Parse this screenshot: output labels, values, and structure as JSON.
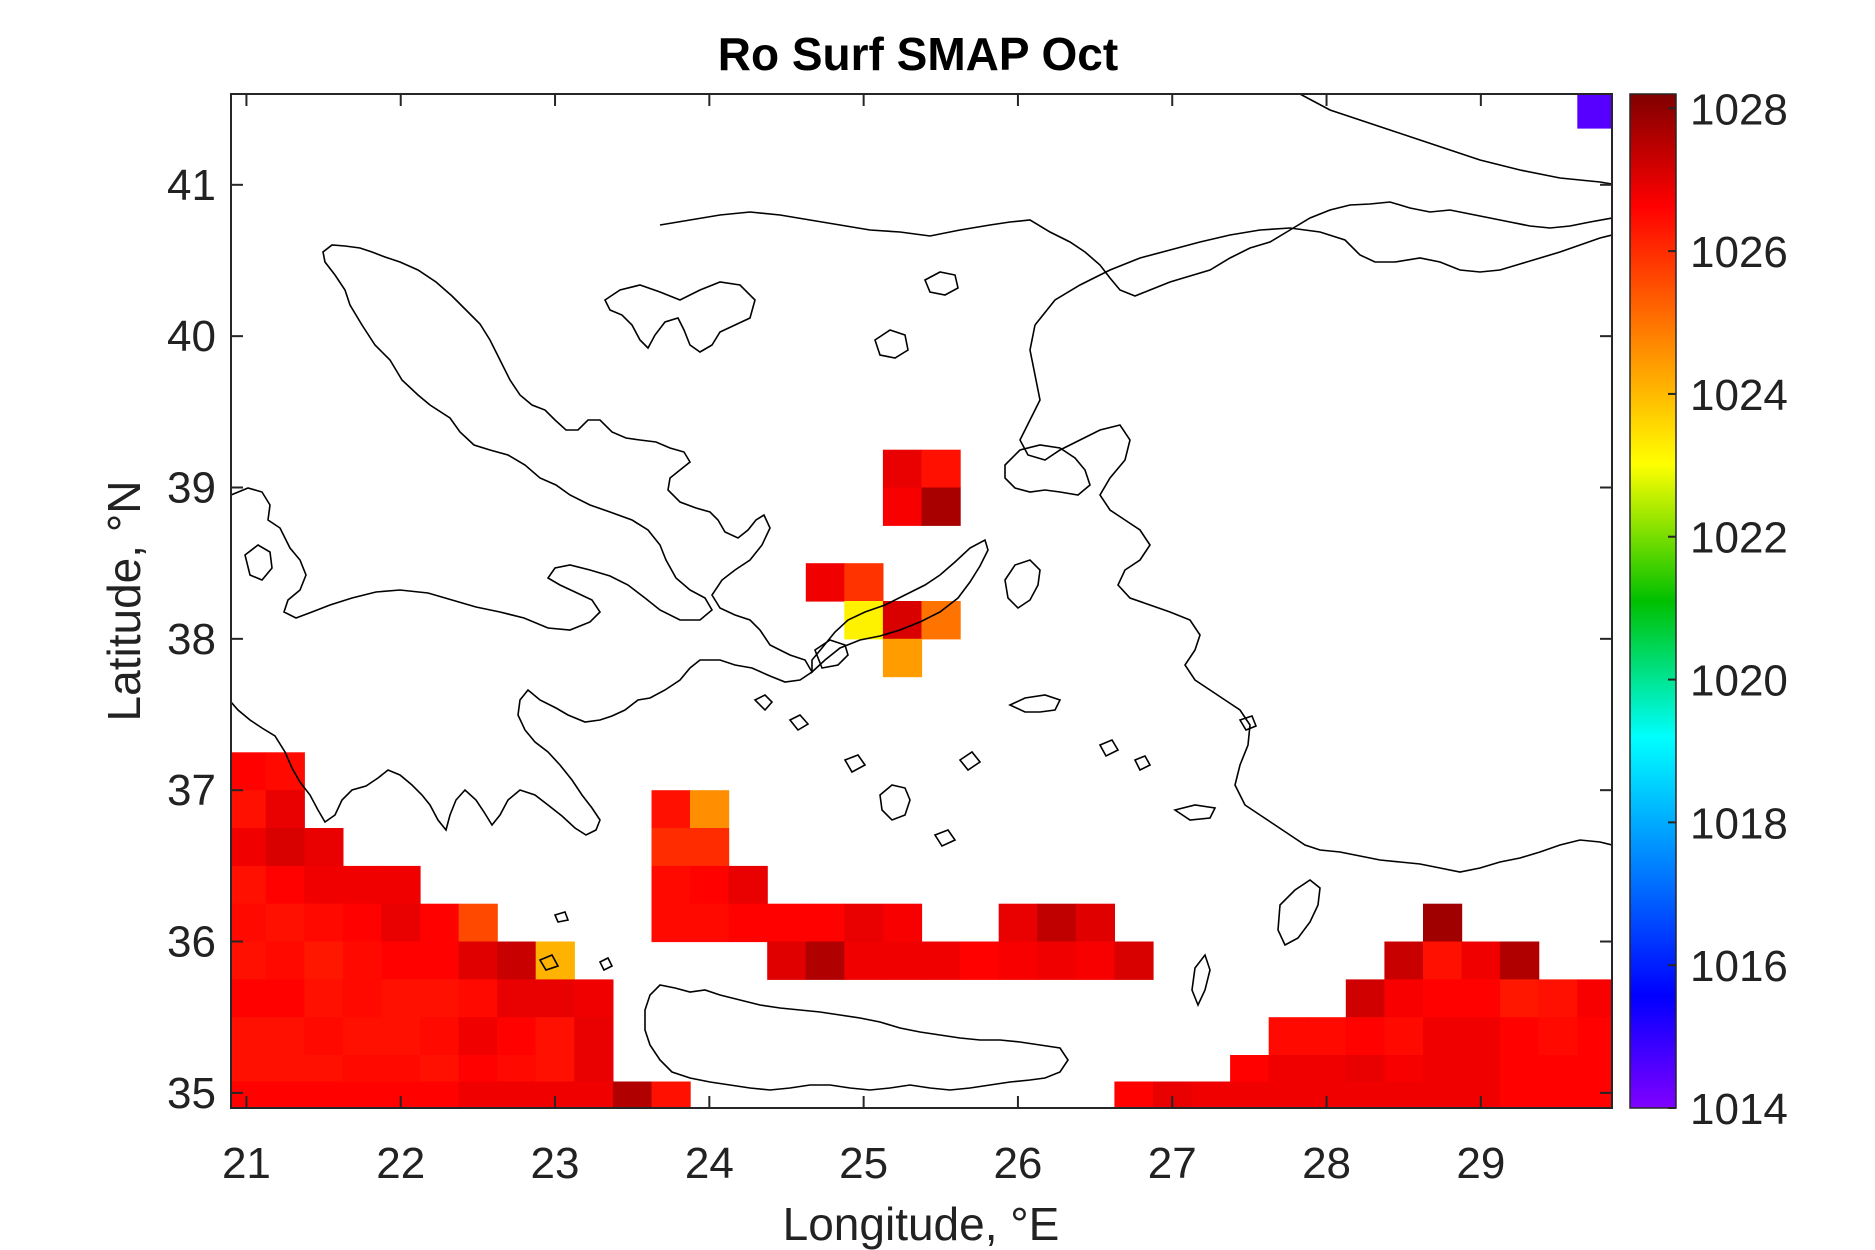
{
  "chart_data": {
    "type": "heatmap",
    "title": "Ro Surf SMAP Oct",
    "xlabel": "Longitude, °E",
    "ylabel": "Latitude, °N",
    "xlim": [
      20.9,
      29.85
    ],
    "ylim": [
      34.9,
      41.6
    ],
    "xticks": [
      21,
      22,
      23,
      24,
      25,
      26,
      27,
      28,
      29
    ],
    "yticks": [
      35,
      36,
      37,
      38,
      39,
      40,
      41
    ],
    "xtick_labels": [
      "21",
      "22",
      "23",
      "24",
      "25",
      "26",
      "27",
      "28",
      "29"
    ],
    "ytick_labels": [
      "35",
      "36",
      "37",
      "38",
      "39",
      "40",
      "41"
    ],
    "colorbar": {
      "colormap": "jet",
      "range": [
        1014,
        1028.2
      ],
      "ticks": [
        1014,
        1016,
        1018,
        1020,
        1022,
        1024,
        1026,
        1028
      ],
      "tick_labels": [
        "1014",
        "1016",
        "1018",
        "1020",
        "1022",
        "1024",
        "1026",
        "1028"
      ]
    },
    "grid_step": 0.25,
    "cells": [
      [
        21.0,
        37.125,
        1026.6
      ],
      [
        21.0,
        36.875,
        1026.4
      ],
      [
        21.0,
        36.625,
        1026.8
      ],
      [
        21.0,
        36.375,
        1026.4
      ],
      [
        21.0,
        36.125,
        1026.5
      ],
      [
        21.0,
        35.875,
        1026.4
      ],
      [
        21.0,
        35.625,
        1026.6
      ],
      [
        21.0,
        35.375,
        1026.4
      ],
      [
        21.0,
        35.125,
        1026.4
      ],
      [
        21.0,
        34.95,
        1026.6
      ],
      [
        21.25,
        37.125,
        1026.5
      ],
      [
        21.25,
        36.875,
        1026.9
      ],
      [
        21.25,
        36.625,
        1027.1
      ],
      [
        21.25,
        36.375,
        1026.6
      ],
      [
        21.25,
        36.125,
        1026.4
      ],
      [
        21.25,
        35.875,
        1026.5
      ],
      [
        21.25,
        35.625,
        1026.6
      ],
      [
        21.25,
        35.375,
        1026.4
      ],
      [
        21.25,
        35.125,
        1026.4
      ],
      [
        21.25,
        34.95,
        1026.6
      ],
      [
        21.5,
        36.625,
        1026.9
      ],
      [
        21.5,
        36.375,
        1026.8
      ],
      [
        21.5,
        36.125,
        1026.5
      ],
      [
        21.5,
        35.875,
        1026.3
      ],
      [
        21.5,
        35.625,
        1026.4
      ],
      [
        21.5,
        35.375,
        1026.5
      ],
      [
        21.5,
        35.125,
        1026.4
      ],
      [
        21.5,
        34.95,
        1026.6
      ],
      [
        21.75,
        36.375,
        1026.8
      ],
      [
        21.75,
        36.125,
        1026.6
      ],
      [
        21.75,
        35.875,
        1026.5
      ],
      [
        21.75,
        35.625,
        1026.5
      ],
      [
        21.75,
        35.375,
        1026.4
      ],
      [
        21.75,
        35.125,
        1026.5
      ],
      [
        21.75,
        34.95,
        1026.6
      ],
      [
        22.0,
        36.375,
        1026.8
      ],
      [
        22.0,
        36.125,
        1026.9
      ],
      [
        22.0,
        35.875,
        1026.6
      ],
      [
        22.0,
        35.625,
        1026.4
      ],
      [
        22.0,
        35.375,
        1026.4
      ],
      [
        22.0,
        35.125,
        1026.5
      ],
      [
        22.0,
        34.95,
        1026.6
      ],
      [
        22.25,
        36.125,
        1026.6
      ],
      [
        22.25,
        35.875,
        1026.6
      ],
      [
        22.25,
        35.625,
        1026.4
      ],
      [
        22.25,
        35.375,
        1026.5
      ],
      [
        22.25,
        35.125,
        1026.4
      ],
      [
        22.25,
        34.95,
        1026.6
      ],
      [
        22.5,
        36.125,
        1025.6
      ],
      [
        22.5,
        35.875,
        1027.0
      ],
      [
        22.5,
        35.625,
        1026.5
      ],
      [
        22.5,
        35.375,
        1026.8
      ],
      [
        22.5,
        35.125,
        1026.6
      ],
      [
        22.5,
        34.95,
        1026.8
      ],
      [
        22.75,
        35.875,
        1027.3
      ],
      [
        22.75,
        35.625,
        1026.9
      ],
      [
        22.75,
        35.375,
        1026.6
      ],
      [
        22.75,
        35.125,
        1026.5
      ],
      [
        22.75,
        34.95,
        1026.8
      ],
      [
        23.0,
        35.875,
        1024.1
      ],
      [
        23.0,
        35.625,
        1026.9
      ],
      [
        23.0,
        35.375,
        1026.4
      ],
      [
        23.0,
        35.125,
        1026.4
      ],
      [
        23.0,
        34.95,
        1026.8
      ],
      [
        23.25,
        35.625,
        1026.8
      ],
      [
        23.25,
        35.375,
        1026.9
      ],
      [
        23.25,
        35.125,
        1026.9
      ],
      [
        23.25,
        34.95,
        1026.8
      ],
      [
        23.5,
        34.95,
        1027.6
      ],
      [
        23.75,
        36.875,
        1026.4
      ],
      [
        23.75,
        36.625,
        1026.0
      ],
      [
        23.75,
        36.375,
        1026.5
      ],
      [
        23.75,
        36.125,
        1026.5
      ],
      [
        23.75,
        34.95,
        1026.4
      ],
      [
        24.0,
        36.875,
        1024.6
      ],
      [
        24.0,
        36.625,
        1026.0
      ],
      [
        24.0,
        36.375,
        1026.6
      ],
      [
        24.0,
        36.125,
        1026.5
      ],
      [
        24.25,
        36.375,
        1026.9
      ],
      [
        24.25,
        36.125,
        1026.6
      ],
      [
        24.5,
        36.125,
        1026.6
      ],
      [
        24.5,
        35.875,
        1027.0
      ],
      [
        24.75,
        36.125,
        1026.6
      ],
      [
        24.75,
        35.875,
        1027.6
      ],
      [
        25.0,
        36.125,
        1026.9
      ],
      [
        25.0,
        35.875,
        1026.8
      ],
      [
        25.25,
        39.125,
        1026.9
      ],
      [
        25.25,
        38.875,
        1026.7
      ],
      [
        25.25,
        36.125,
        1026.7
      ],
      [
        25.25,
        35.875,
        1026.8
      ],
      [
        25.5,
        39.125,
        1026.4
      ],
      [
        25.5,
        38.875,
        1027.7
      ],
      [
        25.5,
        35.875,
        1026.8
      ],
      [
        24.75,
        38.375,
        1026.8
      ],
      [
        25.0,
        38.375,
        1025.9
      ],
      [
        25.0,
        38.125,
        1023.2
      ],
      [
        25.25,
        38.125,
        1027.1
      ],
      [
        25.5,
        38.125,
        1025.0
      ],
      [
        25.25,
        37.875,
        1024.4
      ],
      [
        25.75,
        35.875,
        1026.6
      ],
      [
        26.0,
        36.125,
        1026.9
      ],
      [
        26.0,
        35.875,
        1026.7
      ],
      [
        26.25,
        36.125,
        1027.4
      ],
      [
        26.25,
        35.875,
        1026.8
      ],
      [
        26.5,
        36.125,
        1027.0
      ],
      [
        26.5,
        35.875,
        1026.7
      ],
      [
        26.75,
        35.875,
        1027.1
      ],
      [
        26.75,
        34.95,
        1026.6
      ],
      [
        27.0,
        34.95,
        1026.9
      ],
      [
        27.25,
        34.95,
        1026.8
      ],
      [
        27.5,
        35.125,
        1026.6
      ],
      [
        27.5,
        34.95,
        1026.8
      ],
      [
        27.75,
        35.375,
        1026.5
      ],
      [
        27.75,
        35.125,
        1026.8
      ],
      [
        27.75,
        34.95,
        1026.8
      ],
      [
        28.0,
        35.375,
        1026.5
      ],
      [
        28.0,
        35.125,
        1026.8
      ],
      [
        28.0,
        34.95,
        1026.8
      ],
      [
        28.25,
        35.625,
        1027.2
      ],
      [
        28.25,
        35.375,
        1026.6
      ],
      [
        28.25,
        35.125,
        1026.9
      ],
      [
        28.25,
        34.95,
        1026.8
      ],
      [
        28.5,
        35.875,
        1027.3
      ],
      [
        28.5,
        35.625,
        1026.7
      ],
      [
        28.5,
        35.375,
        1026.5
      ],
      [
        28.5,
        35.125,
        1026.7
      ],
      [
        28.5,
        34.95,
        1026.8
      ],
      [
        28.75,
        36.125,
        1027.8
      ],
      [
        28.75,
        35.875,
        1026.4
      ],
      [
        28.75,
        35.625,
        1026.6
      ],
      [
        28.75,
        35.375,
        1026.8
      ],
      [
        28.75,
        35.125,
        1026.8
      ],
      [
        28.75,
        34.95,
        1026.8
      ],
      [
        29.0,
        35.875,
        1026.8
      ],
      [
        29.0,
        35.625,
        1026.6
      ],
      [
        29.0,
        35.375,
        1026.8
      ],
      [
        29.0,
        35.125,
        1026.8
      ],
      [
        29.0,
        34.95,
        1026.8
      ],
      [
        29.25,
        35.875,
        1027.6
      ],
      [
        29.25,
        35.625,
        1026.3
      ],
      [
        29.25,
        35.375,
        1026.6
      ],
      [
        29.25,
        35.125,
        1026.6
      ],
      [
        29.25,
        34.95,
        1026.6
      ],
      [
        29.5,
        35.625,
        1026.4
      ],
      [
        29.5,
        35.375,
        1026.5
      ],
      [
        29.5,
        35.125,
        1026.6
      ],
      [
        29.5,
        34.95,
        1026.6
      ],
      [
        29.75,
        35.625,
        1026.7
      ],
      [
        29.75,
        35.375,
        1026.6
      ],
      [
        29.75,
        35.125,
        1026.6
      ],
      [
        29.75,
        34.95,
        1026.6
      ],
      [
        29.75,
        41.5,
        1014.5
      ]
    ],
    "grid": false,
    "legend": "colorbar-right"
  }
}
